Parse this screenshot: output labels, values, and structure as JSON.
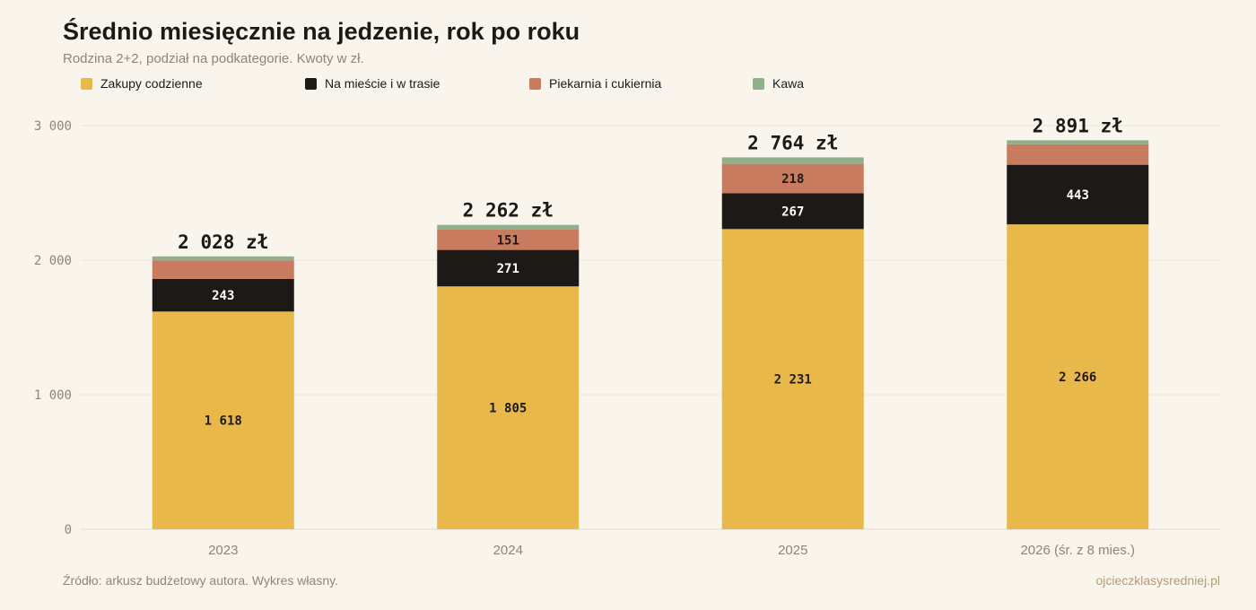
{
  "header": {
    "title": "Średnio miesięcznie na jedzenie, rok po roku",
    "subtitle": "Rodzina 2+2, podział na podkategorie. Kwoty w zł."
  },
  "footer": {
    "source": "Źródło: arkusz budżetowy autora. Wykres własny.",
    "brand": "ojcieczklasysredniej.pl"
  },
  "chart_data": {
    "type": "bar",
    "stacked": true,
    "title": "Średnio miesięcznie na jedzenie, rok po roku",
    "subtitle": "Rodzina 2+2, podział na podkategorie. Kwoty w zł.",
    "xlabel": "",
    "ylabel": "",
    "ylim": [
      0,
      3000
    ],
    "yticks": [
      0,
      1000,
      2000,
      3000
    ],
    "ytick_labels": [
      "0",
      "1 000",
      "2 000",
      "3 000"
    ],
    "grid": true,
    "legend_position": "top-left",
    "categories": [
      "2023",
      "2024",
      "2025",
      "2026 (śr. z 8 mies.)"
    ],
    "series": [
      {
        "name": "Zakupy codzienne",
        "color": "#e8b84b",
        "label_color": "#1c1917",
        "values": [
          1618,
          1805,
          2231,
          2266
        ],
        "labels": [
          "1 618",
          "1 805",
          "2 231",
          "2 266"
        ]
      },
      {
        "name": "Na mieście i w trasie",
        "color": "#1c1917",
        "label_color": "#ffffff",
        "values": [
          243,
          271,
          267,
          443
        ],
        "labels": [
          "243",
          "271",
          "267",
          "443"
        ]
      },
      {
        "name": "Piekarnia i cukiernia",
        "color": "#c97b5f",
        "label_color": "#1c1917",
        "values": [
          137,
          151,
          218,
          152
        ],
        "labels": [
          "",
          "151",
          "218",
          ""
        ]
      },
      {
        "name": "Kawa",
        "color": "#8fb08b",
        "label_color": "#1c1917",
        "values": [
          30,
          35,
          48,
          30
        ],
        "labels": [
          "",
          "",
          "",
          ""
        ]
      }
    ],
    "totals": [
      2028,
      2262,
      2764,
      2891
    ],
    "total_labels": [
      "2 028 zł",
      "2 262 zł",
      "2 764 zł",
      "2 891 zł"
    ]
  }
}
